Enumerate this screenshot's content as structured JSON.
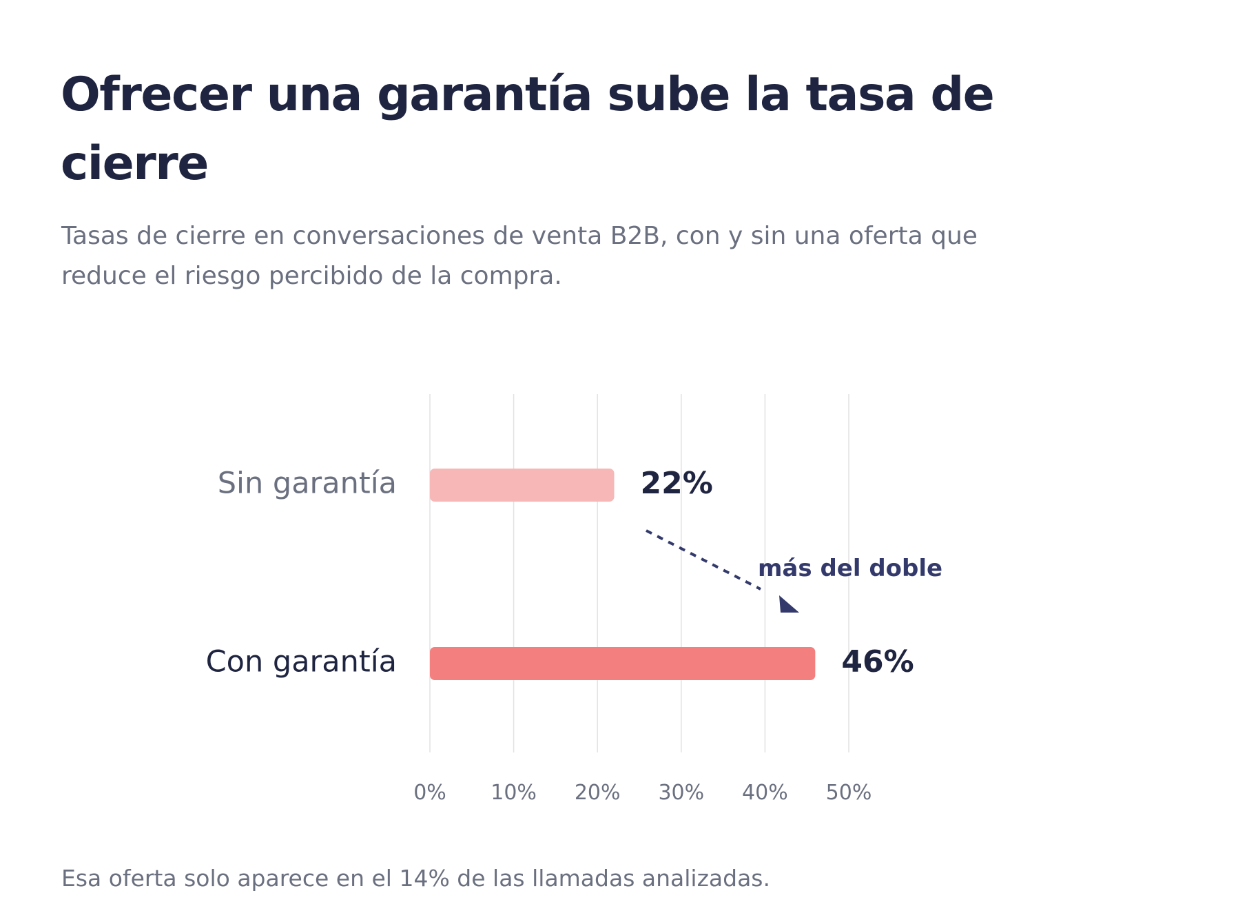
{
  "header": {
    "title": "Ofrecer una garantía sube la tasa de cierre",
    "subtitle": "Tasas de cierre en conversaciones de venta B2B, con y sin una oferta que reduce el riesgo percibido de la compra."
  },
  "footnote": "Esa oferta solo aparece en el 14% de las llamadas analizadas.",
  "chart_data": {
    "type": "bar",
    "orientation": "horizontal",
    "categories": [
      "Sin garantía",
      "Con garantía"
    ],
    "values": [
      22,
      46
    ],
    "value_labels": [
      "22%",
      "46%"
    ],
    "bar_colors": [
      "#f7b7b7",
      "#f47f7f"
    ],
    "category_label_colors": [
      "#6b7080",
      "#1f2440"
    ],
    "xlim": [
      0,
      50
    ],
    "ticks": [
      0,
      10,
      20,
      30,
      40,
      50
    ],
    "tick_labels": [
      "0%",
      "10%",
      "20%",
      "30%",
      "40%",
      "50%"
    ],
    "grid": true,
    "annotation": {
      "text": "más del doble",
      "from_category": "Sin garantía",
      "to_category": "Con garantía",
      "color": "#333a6b"
    },
    "colors": {
      "grid": "#e2e2e2",
      "tick_label": "#6b7080",
      "value_label": "#1f2440"
    }
  }
}
